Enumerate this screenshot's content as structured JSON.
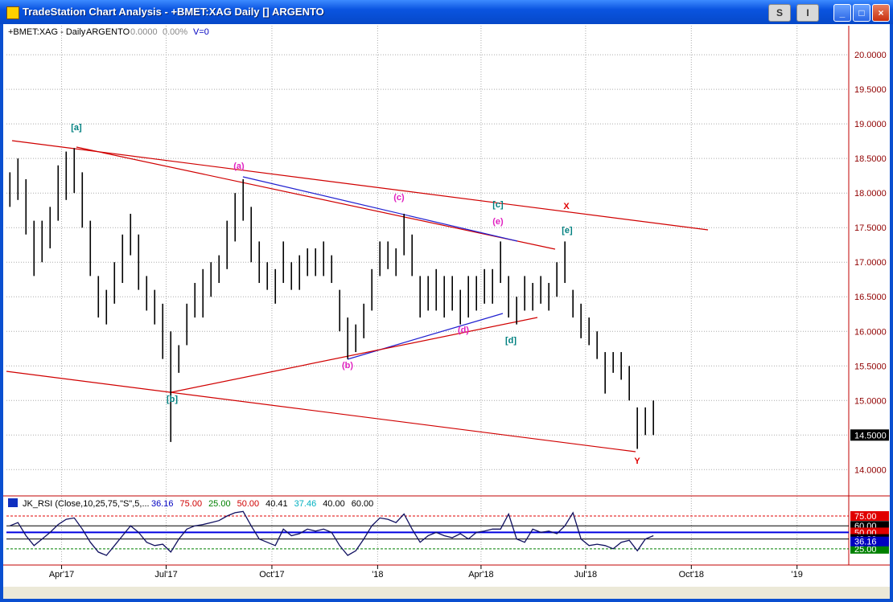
{
  "window": {
    "title": "TradeStation Chart Analysis - +BMET:XAG Daily [] ARGENTO",
    "buttons": [
      "S",
      "I"
    ]
  },
  "header": {
    "symbol": "+BMET:XAG - Daily",
    "description": "ARGENTO",
    "last": "0.0000",
    "change": "0.00%",
    "volume": "V=0"
  },
  "price": {
    "xlim": [
      42,
      775
    ],
    "ylim": [
      13.62,
      20.42
    ],
    "yticks": [
      {
        "value": 14,
        "label": "14.0000"
      },
      {
        "value": 14.5,
        "label": "14.5000"
      },
      {
        "value": 15,
        "label": "15.0000"
      },
      {
        "value": 15.5,
        "label": "15.5000"
      },
      {
        "value": 16,
        "label": "16.0000"
      },
      {
        "value": 16.5,
        "label": "16.5000"
      },
      {
        "value": 17,
        "label": "17.0000"
      },
      {
        "value": 17.5,
        "label": "17.5000"
      },
      {
        "value": 18,
        "label": "18.0000"
      },
      {
        "value": 18.5,
        "label": "18.5000"
      },
      {
        "value": 19,
        "label": "19.0000"
      },
      {
        "value": 19.5,
        "label": "19.5000"
      },
      {
        "value": 20,
        "label": "20.0000"
      }
    ],
    "last_price": {
      "value": 14.5,
      "label": "14.5000"
    },
    "bars": {
      "x": [
        45,
        52,
        59,
        66,
        73,
        80,
        87,
        94,
        101,
        108,
        115,
        122,
        129,
        136,
        143,
        150,
        157,
        164,
        171,
        178,
        185,
        192,
        199,
        206,
        213,
        220,
        227,
        234,
        241,
        248,
        255,
        262,
        269,
        276,
        283,
        290,
        297,
        304,
        311,
        318,
        325,
        332,
        339,
        346,
        353,
        360,
        367,
        374,
        381,
        388,
        395,
        402,
        409,
        416,
        423,
        430,
        437,
        444,
        451,
        458,
        465,
        472,
        479,
        486,
        493,
        500,
        507,
        514,
        521,
        528,
        535,
        542,
        549,
        556,
        563,
        570,
        577,
        584,
        591,
        598,
        605
      ],
      "high": [
        18.3,
        18.5,
        18.2,
        17.6,
        17.6,
        17.8,
        18.4,
        18.6,
        18.65,
        18.3,
        17.6,
        16.8,
        16.6,
        17.0,
        17.4,
        17.7,
        17.4,
        16.8,
        16.6,
        16.4,
        16.0,
        15.8,
        16.4,
        16.7,
        16.9,
        17.0,
        17.1,
        17.6,
        18.0,
        18.2,
        17.8,
        17.3,
        17.0,
        16.9,
        17.3,
        17.0,
        17.1,
        17.2,
        17.2,
        17.3,
        17.1,
        16.6,
        16.2,
        16.1,
        16.4,
        16.9,
        17.3,
        17.3,
        17.2,
        17.7,
        17.4,
        16.8,
        16.8,
        16.9,
        16.8,
        16.8,
        16.6,
        16.8,
        16.8,
        16.9,
        16.9,
        17.3,
        16.8,
        16.5,
        16.8,
        16.7,
        16.8,
        16.7,
        17.0,
        17.3,
        16.6,
        16.4,
        16.2,
        16.0,
        15.7,
        15.7,
        15.7,
        15.5,
        14.9,
        14.9,
        15.0
      ],
      "low": [
        17.8,
        17.9,
        17.4,
        16.8,
        17.0,
        17.2,
        17.6,
        17.9,
        18.0,
        17.5,
        16.8,
        16.2,
        16.1,
        16.4,
        16.7,
        17.1,
        16.6,
        16.3,
        16.1,
        15.6,
        14.4,
        15.4,
        15.8,
        16.2,
        16.2,
        16.5,
        16.7,
        16.9,
        17.3,
        17.6,
        17.0,
        16.7,
        16.6,
        16.4,
        16.7,
        16.6,
        16.6,
        16.8,
        16.8,
        16.8,
        16.7,
        16.0,
        15.6,
        15.7,
        15.9,
        16.3,
        16.8,
        16.9,
        16.8,
        17.1,
        16.8,
        16.2,
        16.3,
        16.3,
        16.2,
        16.3,
        16.1,
        16.2,
        16.3,
        16.4,
        16.4,
        16.7,
        16.2,
        16.1,
        16.3,
        16.3,
        16.4,
        16.3,
        16.5,
        16.7,
        16.2,
        15.9,
        15.8,
        15.6,
        15.1,
        15.4,
        15.3,
        15.0,
        14.3,
        14.5,
        14.5
      ]
    },
    "wave_labels": [
      {
        "text": "[a]",
        "color": "#008080"
      },
      {
        "text": "(a)",
        "color": "#e020c0"
      },
      {
        "text": "(c)",
        "color": "#e020c0"
      },
      {
        "text": "[c]",
        "color": "#008080"
      },
      {
        "text": "X",
        "color": "#e00000"
      },
      {
        "text": "(e)",
        "color": "#e020c0"
      },
      {
        "text": "[e]",
        "color": "#008080"
      },
      {
        "text": "(d)",
        "color": "#e020c0"
      },
      {
        "text": "[d]",
        "color": "#008080"
      },
      {
        "text": "(b)",
        "color": "#e020c0"
      },
      {
        "text": "[b]",
        "color": "#008080"
      },
      {
        "text": "Y",
        "color": "#e00000"
      }
    ]
  },
  "rsi": {
    "title": "JK_RSI (Close,10,25,75,\"S\",5,...",
    "readings": [
      {
        "text": "36.16",
        "color": "#0000c0"
      },
      {
        "text": "75.00",
        "color": "#d00000"
      },
      {
        "text": "25.00",
        "color": "#008000"
      },
      {
        "text": "50.00",
        "color": "#d00000"
      },
      {
        "text": "40.41",
        "color": "#000000"
      },
      {
        "text": "37.46",
        "color": "#00b0c0"
      },
      {
        "text": "40.00",
        "color": "#000000"
      },
      {
        "text": "60.00",
        "color": "#000000"
      }
    ],
    "ylim": [
      4,
      86
    ],
    "levels": [
      {
        "value": 75,
        "label": "75.00",
        "color": "#e00000"
      },
      {
        "value": 60,
        "label": "60.00",
        "color": "#000000"
      },
      {
        "value": 50,
        "label": "50.00",
        "color": "#e00000"
      },
      {
        "value": 40,
        "label": "40.00",
        "color": "#000000"
      },
      {
        "value": 25,
        "label": "25.00",
        "color": "#008000"
      }
    ],
    "current": {
      "value": 36.16,
      "label": "36.16",
      "color": "#0000c0"
    },
    "values": [
      60,
      65,
      45,
      30,
      40,
      50,
      62,
      70,
      72,
      55,
      35,
      20,
      15,
      30,
      45,
      60,
      50,
      35,
      30,
      32,
      20,
      40,
      55,
      60,
      62,
      65,
      68,
      75,
      80,
      82,
      60,
      40,
      35,
      30,
      55,
      45,
      48,
      55,
      52,
      55,
      50,
      30,
      15,
      22,
      40,
      60,
      72,
      70,
      65,
      78,
      55,
      35,
      45,
      50,
      45,
      42,
      48,
      40,
      50,
      52,
      55,
      55,
      78,
      40,
      35,
      55,
      50,
      52,
      48,
      60,
      80,
      40,
      30,
      32,
      30,
      25,
      35,
      38,
      22,
      40,
      45
    ]
  },
  "xaxis": {
    "ticks": [
      {
        "value": 90,
        "label": "Apr'17"
      },
      {
        "value": 181,
        "label": "Jul'17"
      },
      {
        "value": 273,
        "label": "Oct'17"
      },
      {
        "value": 365,
        "label": "'18"
      },
      {
        "value": 455,
        "label": "Apr'18"
      },
      {
        "value": 546,
        "label": "Jul'18"
      },
      {
        "value": 638,
        "label": "Oct'18"
      },
      {
        "value": 730,
        "label": "'19"
      }
    ]
  }
}
